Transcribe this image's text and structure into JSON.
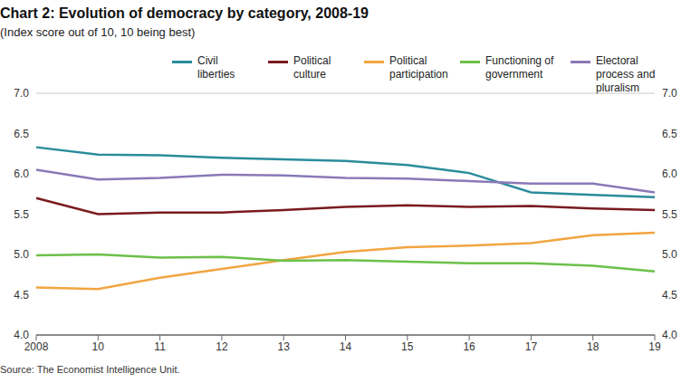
{
  "chart_data": {
    "type": "line",
    "title": "Chart 2: Evolution of democracy by category, 2008-19",
    "subtitle": "(Index score out of 10, 10 being best)",
    "source": "Source: The Economist Intelligence Unit.",
    "categories": [
      "2008",
      "10",
      "11",
      "12",
      "13",
      "14",
      "15",
      "16",
      "17",
      "18",
      "19"
    ],
    "series": [
      {
        "name": "Civil liberties",
        "color": "#2a8c9c",
        "values": [
          6.33,
          6.24,
          6.23,
          6.2,
          6.18,
          6.16,
          6.11,
          6.01,
          5.77,
          5.74,
          5.71
        ]
      },
      {
        "name": "Political culture",
        "color": "#7a1a1f",
        "values": [
          5.7,
          5.5,
          5.52,
          5.52,
          5.55,
          5.59,
          5.61,
          5.59,
          5.6,
          5.57,
          5.55
        ]
      },
      {
        "name": "Political participation",
        "color": "#f2a541",
        "values": [
          4.59,
          4.57,
          4.71,
          4.82,
          4.93,
          5.03,
          5.09,
          5.11,
          5.14,
          5.24,
          5.27
        ]
      },
      {
        "name": "Functioning of government",
        "color": "#6cc04a",
        "values": [
          4.99,
          5.0,
          4.96,
          4.97,
          4.92,
          4.93,
          4.91,
          4.89,
          4.89,
          4.86,
          4.79
        ]
      },
      {
        "name": "Electoral process and pluralism",
        "color": "#8a79b8",
        "values": [
          6.05,
          5.93,
          5.95,
          5.99,
          5.98,
          5.95,
          5.94,
          5.91,
          5.88,
          5.88,
          5.77
        ]
      }
    ],
    "ylim": [
      4,
      7
    ],
    "yticks": [
      {
        "value": 4,
        "label": "4.0"
      },
      4.5,
      {
        "value": 5,
        "label": "5.0"
      },
      5.5,
      {
        "value": 6,
        "label": "6.0"
      },
      6.5,
      {
        "value": 7,
        "label": "7.0"
      }
    ],
    "grid": true,
    "legend": "top"
  }
}
